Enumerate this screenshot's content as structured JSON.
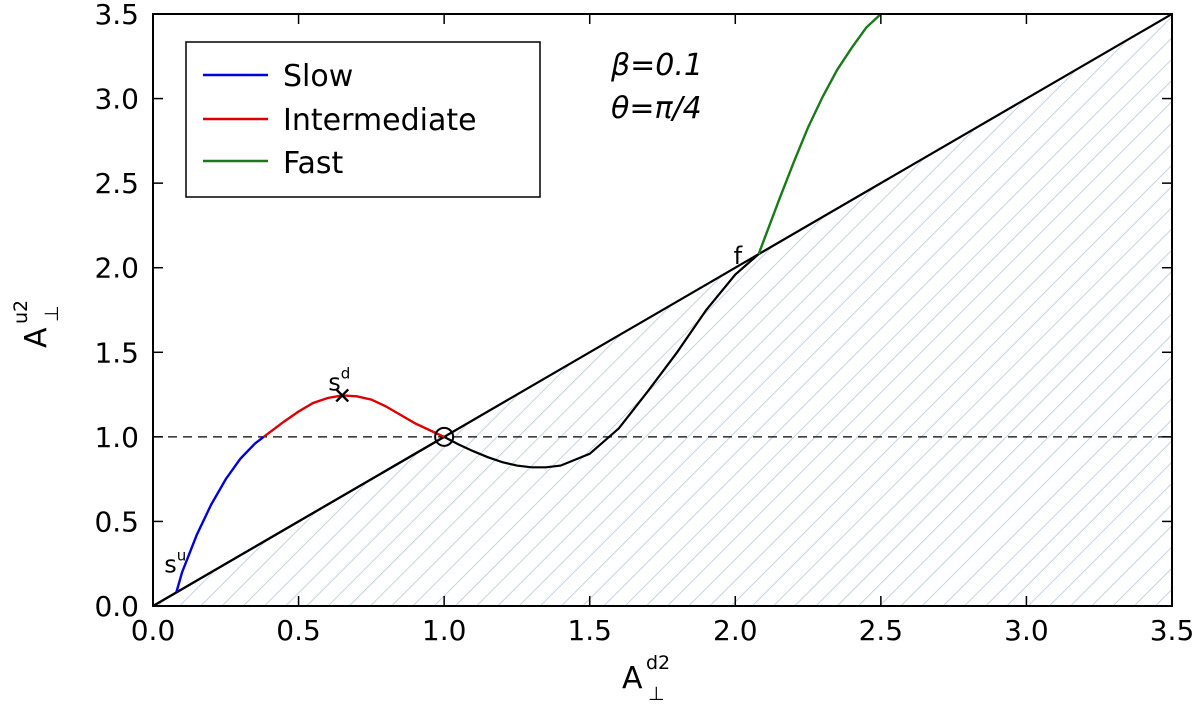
{
  "chart_data": {
    "type": "line",
    "xlabel": {
      "base": "A",
      "sub": "⊥",
      "sup": "d2"
    },
    "ylabel": {
      "base": "A",
      "sub": "⊥",
      "sup": "u2"
    },
    "xlim": [
      0.0,
      3.5
    ],
    "ylim": [
      0.0,
      3.5
    ],
    "x_ticks": [
      "0.0",
      "0.5",
      "1.0",
      "1.5",
      "2.0",
      "2.5",
      "3.0",
      "3.5"
    ],
    "y_ticks": [
      "0.0",
      "0.5",
      "1.0",
      "1.5",
      "2.0",
      "2.5",
      "3.0",
      "3.5"
    ],
    "grid": false,
    "legend_position": "top-left",
    "annotations": {
      "beta": "β=0.1",
      "theta": "θ=π/4"
    },
    "colors": {
      "slow": "#0000dd",
      "intermediate": "#dd0000",
      "fast": "#1a7a1a",
      "black": "#000000",
      "hatch": "#b8c8dc"
    },
    "series": [
      {
        "name": "Slow",
        "color": "#0000dd",
        "x": [
          0.08,
          0.1,
          0.15,
          0.2,
          0.25,
          0.3,
          0.35,
          0.38
        ],
        "y": [
          0.08,
          0.2,
          0.42,
          0.6,
          0.75,
          0.87,
          0.96,
          1.0
        ]
      },
      {
        "name": "Intermediate",
        "color": "#dd0000",
        "x": [
          0.38,
          0.45,
          0.5,
          0.55,
          0.6,
          0.65,
          0.7,
          0.75,
          0.8,
          0.85,
          0.9,
          0.95,
          1.0
        ],
        "y": [
          1.0,
          1.09,
          1.15,
          1.2,
          1.23,
          1.245,
          1.24,
          1.22,
          1.18,
          1.13,
          1.08,
          1.04,
          1.0
        ]
      },
      {
        "name": "Fast",
        "color": "#1a7a1a",
        "x": [
          2.08,
          2.15,
          2.2,
          2.25,
          2.3,
          2.35,
          2.4,
          2.45,
          2.5
        ],
        "y": [
          2.08,
          2.4,
          2.62,
          2.83,
          3.01,
          3.17,
          3.3,
          3.42,
          3.5
        ]
      }
    ],
    "black_curve": {
      "x": [
        0.0,
        0.08,
        0.08,
        1.0,
        1.05,
        1.1,
        1.15,
        1.2,
        1.25,
        1.3,
        1.35,
        1.4,
        1.5,
        1.6,
        1.7,
        1.8,
        1.9,
        2.0,
        2.08
      ],
      "y": [
        0.0,
        0.08,
        0.08,
        1.0,
        0.955,
        0.915,
        0.88,
        0.85,
        0.83,
        0.82,
        0.82,
        0.83,
        0.9,
        1.05,
        1.27,
        1.5,
        1.75,
        1.96,
        2.08
      ]
    },
    "diagonal": {
      "x": [
        0.0,
        3.5
      ],
      "y": [
        0.0,
        3.5
      ]
    },
    "dashed_line": {
      "y": 1.0,
      "x": [
        0.0,
        3.5
      ]
    },
    "points": [
      {
        "name": "s-u",
        "label": "s",
        "sup": "u",
        "x": 0.08,
        "y": 0.08
      },
      {
        "name": "s-d",
        "label": "s",
        "sup": "d",
        "x": 0.65,
        "y": 1.245
      },
      {
        "name": "f",
        "label": "f",
        "sup": "",
        "x": 2.08,
        "y": 2.08
      },
      {
        "name": "origin-circle",
        "label": "",
        "sup": "",
        "x": 1.0,
        "y": 1.0
      }
    ]
  }
}
